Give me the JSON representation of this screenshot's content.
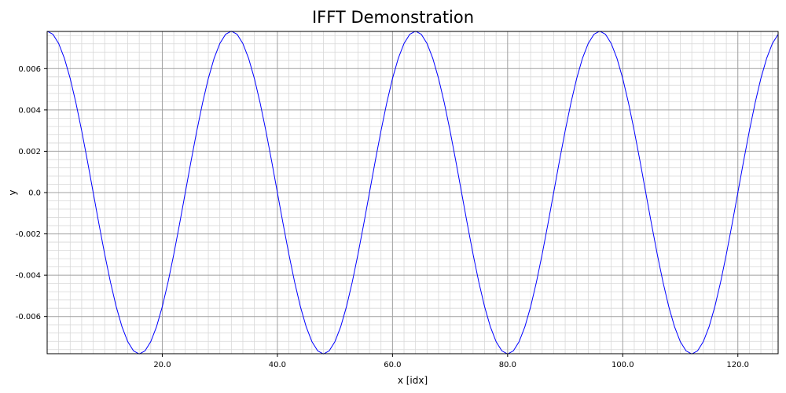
{
  "chart_data": {
    "type": "line",
    "title": "IFFT Demonstration",
    "xlabel": "x [idx]",
    "ylabel": "y",
    "xlim": [
      0,
      127
    ],
    "ylim": [
      -0.0078,
      0.0078
    ],
    "grid": true,
    "x_ticks": [
      20,
      40,
      60,
      80,
      100,
      120
    ],
    "x_tick_labels": [
      "20.0",
      "40.0",
      "60.0",
      "80.0",
      "100.0",
      "120.0"
    ],
    "y_ticks": [
      -0.006,
      -0.004,
      -0.002,
      0.0,
      0.002,
      0.004,
      0.006
    ],
    "y_tick_labels": [
      "-0.006",
      "-0.004",
      "-0.002",
      "0.0",
      "0.002",
      "0.004",
      "0.006"
    ],
    "series": [
      {
        "color": "#0000ff",
        "function": "cosine",
        "amplitude": 0.0078125,
        "period": 32,
        "x_start": 0,
        "x_end": 127,
        "x_step": 1
      }
    ]
  }
}
